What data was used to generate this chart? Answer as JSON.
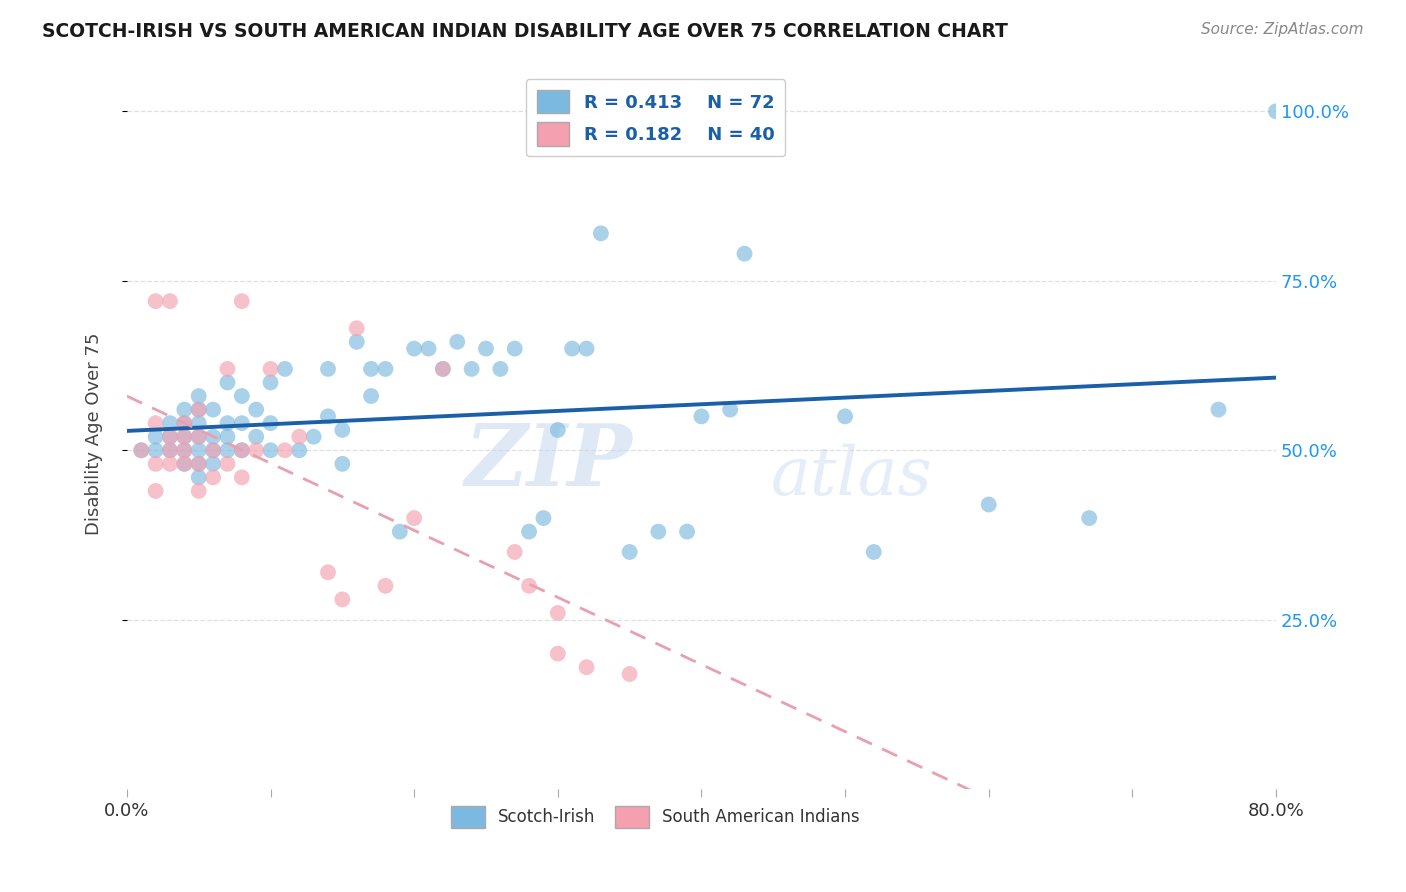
{
  "title": "SCOTCH-IRISH VS SOUTH AMERICAN INDIAN DISABILITY AGE OVER 75 CORRELATION CHART",
  "source": "Source: ZipAtlas.com",
  "ylabel": "Disability Age Over 75",
  "xlim": [
    0.0,
    0.8
  ],
  "ylim": [
    0.0,
    1.05
  ],
  "ytick_positions": [
    0.25,
    0.5,
    0.75,
    1.0
  ],
  "ytick_labels": [
    "25.0%",
    "50.0%",
    "75.0%",
    "100.0%"
  ],
  "scotch_irish_color": "#7cb9e0",
  "south_american_color": "#f4a0b0",
  "scotch_irish_line_color": "#1a5fa8",
  "south_american_line_color": "#e8a0b0",
  "legend_R1": "R = 0.413",
  "legend_N1": "N = 72",
  "legend_R2": "R = 0.182",
  "legend_N2": "N = 40",
  "scotch_irish_x": [
    0.01,
    0.02,
    0.02,
    0.03,
    0.03,
    0.03,
    0.04,
    0.04,
    0.04,
    0.04,
    0.04,
    0.05,
    0.05,
    0.05,
    0.05,
    0.05,
    0.05,
    0.05,
    0.06,
    0.06,
    0.06,
    0.06,
    0.07,
    0.07,
    0.07,
    0.07,
    0.08,
    0.08,
    0.08,
    0.09,
    0.09,
    0.1,
    0.1,
    0.1,
    0.11,
    0.12,
    0.13,
    0.14,
    0.14,
    0.15,
    0.15,
    0.16,
    0.17,
    0.17,
    0.18,
    0.19,
    0.2,
    0.21,
    0.22,
    0.23,
    0.24,
    0.25,
    0.26,
    0.27,
    0.28,
    0.29,
    0.3,
    0.31,
    0.32,
    0.33,
    0.35,
    0.37,
    0.39,
    0.4,
    0.42,
    0.43,
    0.5,
    0.52,
    0.6,
    0.67,
    0.76,
    0.8
  ],
  "scotch_irish_y": [
    0.5,
    0.5,
    0.52,
    0.5,
    0.52,
    0.54,
    0.48,
    0.5,
    0.52,
    0.54,
    0.56,
    0.46,
    0.48,
    0.5,
    0.52,
    0.54,
    0.56,
    0.58,
    0.48,
    0.5,
    0.52,
    0.56,
    0.5,
    0.52,
    0.54,
    0.6,
    0.5,
    0.54,
    0.58,
    0.52,
    0.56,
    0.5,
    0.54,
    0.6,
    0.62,
    0.5,
    0.52,
    0.55,
    0.62,
    0.48,
    0.53,
    0.66,
    0.58,
    0.62,
    0.62,
    0.38,
    0.65,
    0.65,
    0.62,
    0.66,
    0.62,
    0.65,
    0.62,
    0.65,
    0.38,
    0.4,
    0.53,
    0.65,
    0.65,
    0.82,
    0.35,
    0.38,
    0.38,
    0.55,
    0.56,
    0.79,
    0.55,
    0.35,
    0.42,
    0.4,
    0.56,
    1.0
  ],
  "south_american_x": [
    0.01,
    0.02,
    0.02,
    0.02,
    0.02,
    0.03,
    0.03,
    0.03,
    0.03,
    0.04,
    0.04,
    0.04,
    0.04,
    0.05,
    0.05,
    0.05,
    0.05,
    0.06,
    0.06,
    0.07,
    0.07,
    0.08,
    0.08,
    0.08,
    0.09,
    0.1,
    0.11,
    0.12,
    0.14,
    0.15,
    0.16,
    0.18,
    0.2,
    0.22,
    0.27,
    0.28,
    0.3,
    0.3,
    0.32,
    0.35
  ],
  "south_american_y": [
    0.5,
    0.44,
    0.48,
    0.54,
    0.72,
    0.48,
    0.5,
    0.52,
    0.72,
    0.48,
    0.5,
    0.52,
    0.54,
    0.44,
    0.48,
    0.52,
    0.56,
    0.46,
    0.5,
    0.48,
    0.62,
    0.46,
    0.5,
    0.72,
    0.5,
    0.62,
    0.5,
    0.52,
    0.32,
    0.28,
    0.68,
    0.3,
    0.4,
    0.62,
    0.35,
    0.3,
    0.26,
    0.2,
    0.18,
    0.17
  ],
  "watermark_zip": "ZIP",
  "watermark_atlas": "atlas",
  "background_color": "#ffffff",
  "grid_color": "#e0e0e0"
}
